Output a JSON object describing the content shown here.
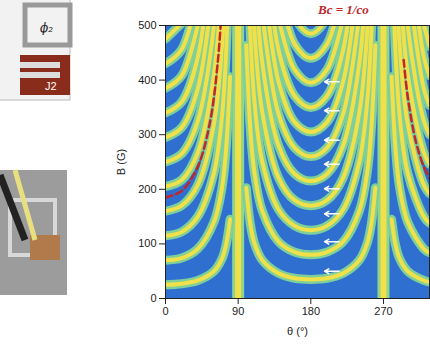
{
  "chart_data": {
    "type": "line",
    "x_label": "θ (°)",
    "y_label": "B (G)",
    "xlim": [
      0,
      327
    ],
    "xticks": [
      0,
      90,
      180,
      270
    ],
    "ylim": [
      0,
      500
    ],
    "yticks": [
      0,
      100,
      200,
      300,
      400,
      500
    ],
    "bands": [
      90,
      270
    ],
    "fringes": [
      {
        "x": [
          100,
          105,
          110,
          120,
          140,
          160,
          180,
          200,
          220,
          240,
          250,
          255,
          260
        ],
        "y": [
          203,
          137,
          102,
          70,
          46,
          37,
          35,
          37,
          46,
          70,
          102,
          137,
          203
        ]
      },
      {
        "x": [
          100,
          105,
          110,
          120,
          140,
          160,
          180,
          200,
          220,
          240,
          250,
          255,
          260
        ],
        "y": [
          464,
          312,
          232,
          160,
          104,
          85,
          80,
          85,
          104,
          160,
          232,
          312,
          464
        ]
      },
      {
        "x": [
          100,
          105,
          110,
          120,
          140,
          160,
          180,
          200,
          220,
          240,
          250,
          255,
          260
        ],
        "y": [
          725,
          488,
          363,
          250,
          163,
          133,
          125,
          133,
          163,
          250,
          363,
          488,
          725
        ]
      },
      {
        "x": [
          105,
          110,
          120,
          140,
          160,
          180,
          200,
          220,
          240,
          250,
          255
        ],
        "y": [
          663,
          493,
          340,
          221,
          180,
          170,
          180,
          221,
          340,
          493,
          663
        ]
      },
      {
        "x": [
          110,
          120,
          140,
          160,
          180,
          200,
          220,
          240,
          250
        ],
        "y": [
          624,
          430,
          280,
          228,
          215,
          228,
          280,
          430,
          624
        ]
      },
      {
        "x": [
          120,
          140,
          160,
          180,
          200,
          220,
          240
        ],
        "y": [
          520,
          338,
          276,
          260,
          276,
          338,
          520
        ]
      },
      {
        "x": [
          120,
          140,
          160,
          180,
          200,
          220,
          240
        ],
        "y": [
          610,
          397,
          323,
          305,
          323,
          397,
          610
        ]
      },
      {
        "x": [
          120,
          140,
          160,
          180,
          200,
          220,
          240
        ],
        "y": [
          700,
          455,
          371,
          350,
          371,
          455,
          700
        ]
      },
      {
        "x": [
          140,
          160,
          180,
          200,
          220
        ],
        "y": [
          514,
          419,
          395,
          419,
          514
        ]
      },
      {
        "x": [
          140,
          160,
          180,
          200,
          220
        ],
        "y": [
          572,
          466,
          440,
          466,
          572
        ]
      },
      {
        "x": [
          140,
          160,
          180,
          200,
          220
        ],
        "y": [
          631,
          514,
          485,
          514,
          631
        ]
      },
      {
        "x": [
          0,
          20,
          40,
          60,
          70,
          75,
          80
        ],
        "y": [
          25,
          27,
          33,
          50,
          73,
          98,
          145
        ]
      },
      {
        "x": [
          0,
          20,
          40,
          60,
          70,
          75,
          80
        ],
        "y": [
          70,
          74,
          91,
          140,
          203,
          273,
          406
        ]
      },
      {
        "x": [
          0,
          20,
          40,
          60,
          70,
          75,
          80
        ],
        "y": [
          115,
          122,
          150,
          230,
          334,
          449,
          667
        ]
      },
      {
        "x": [
          0,
          20,
          40,
          60,
          70,
          75
        ],
        "y": [
          160,
          170,
          208,
          320,
          464,
          624
        ]
      },
      {
        "x": [
          0,
          20,
          40,
          60,
          70
        ],
        "y": [
          205,
          217,
          267,
          410,
          595
        ]
      },
      {
        "x": [
          0,
          20,
          40,
          60,
          70
        ],
        "y": [
          250,
          265,
          325,
          500,
          725
        ]
      },
      {
        "x": [
          0,
          20,
          40,
          60
        ],
        "y": [
          295,
          313,
          384,
          590
        ]
      },
      {
        "x": [
          0,
          20,
          40,
          60
        ],
        "y": [
          340,
          360,
          442,
          680
        ]
      },
      {
        "x": [
          0,
          20,
          40
        ],
        "y": [
          385,
          408,
          501
        ]
      },
      {
        "x": [
          0,
          20,
          40
        ],
        "y": [
          430,
          456,
          559
        ]
      },
      {
        "x": [
          0,
          20
        ],
        "y": [
          475,
          504
        ]
      },
      {
        "x": [
          280,
          285,
          290,
          300,
          320,
          327
        ],
        "y": [
          145,
          98,
          73,
          50,
          33,
          30
        ]
      },
      {
        "x": [
          280,
          285,
          290,
          300,
          320,
          327
        ],
        "y": [
          406,
          273,
          203,
          140,
          91,
          84
        ]
      },
      {
        "x": [
          280,
          285,
          290,
          300,
          320,
          327
        ],
        "y": [
          667,
          449,
          334,
          230,
          150,
          138
        ]
      },
      {
        "x": [
          285,
          290,
          300,
          320,
          327
        ],
        "y": [
          624,
          464,
          320,
          208,
          192
        ]
      },
      {
        "x": [
          290,
          300,
          320,
          327
        ],
        "y": [
          595,
          410,
          267,
          246
        ]
      },
      {
        "x": [
          290,
          300,
          320,
          327
        ],
        "y": [
          725,
          500,
          325,
          300
        ]
      },
      {
        "x": [
          300,
          320,
          327
        ],
        "y": [
          590,
          384,
          354
        ]
      },
      {
        "x": [
          300,
          320,
          327
        ],
        "y": [
          680,
          442,
          408
        ]
      },
      {
        "x": [
          320,
          327
        ],
        "y": [
          501,
          462
        ]
      }
    ],
    "curves": [
      {
        "x": [
          0,
          20,
          40,
          55,
          65,
          70
        ],
        "y": [
          185,
          197,
          242,
          322,
          437,
          541
        ],
        "color": "#c0272d",
        "line_style": "dashed"
      },
      {
        "x": [
          295,
          300,
          310,
          320,
          327
        ],
        "y": [
          437,
          370,
          288,
          241,
          221
        ],
        "color": "#c0272d",
        "line_style": "dashed"
      }
    ],
    "arrows": {
      "x1": 215,
      "x2": 197,
      "y": [
        50,
        104,
        155,
        201,
        246,
        290,
        344,
        397
      ]
    },
    "annotation": "Bc = 1/co",
    "panel_labels": [
      "ϕ₂",
      "J2"
    ]
  }
}
